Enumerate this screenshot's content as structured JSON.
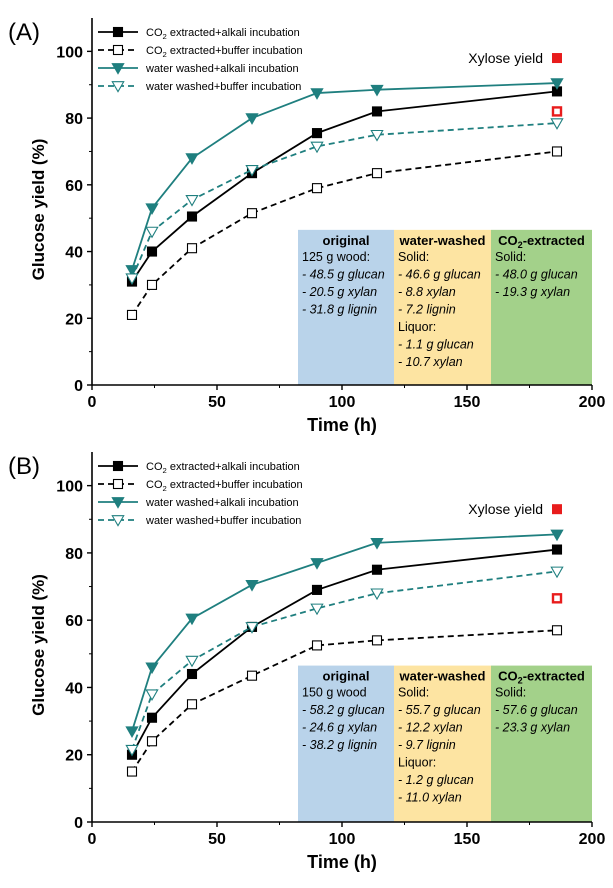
{
  "chart_data": [
    {
      "panel": "(A)",
      "type": "line",
      "xlabel": "Time (h)",
      "ylabel": "Glucose yield (%)",
      "xlim": [
        0,
        200
      ],
      "ylim": [
        0,
        110
      ],
      "xticks": [
        0,
        50,
        100,
        150,
        200
      ],
      "yticks": [
        0,
        20,
        40,
        60,
        80,
        100
      ],
      "grid": false,
      "legend_position": "top-left",
      "series": [
        {
          "name": "CO₂ extracted+alkali incubation",
          "marker": "square-filled",
          "line": "solid",
          "color": "#000000",
          "x": [
            16,
            24,
            40,
            64,
            90,
            114,
            186
          ],
          "y": [
            31,
            40,
            50.5,
            63.5,
            75.5,
            82,
            88
          ]
        },
        {
          "name": "CO₂ extracted+buffer incubation",
          "marker": "square-open",
          "line": "dashed",
          "color": "#000000",
          "x": [
            16,
            24,
            40,
            64,
            90,
            114,
            186
          ],
          "y": [
            21,
            30,
            41,
            51.5,
            59,
            63.5,
            70
          ]
        },
        {
          "name": "water washed+alkali incubation",
          "marker": "triangle-down-filled",
          "line": "solid",
          "color": "#1f7f7f",
          "x": [
            16,
            24,
            40,
            64,
            90,
            114,
            186
          ],
          "y": [
            34.5,
            53,
            68,
            80,
            87.5,
            88.5,
            90.5
          ]
        },
        {
          "name": "water washed+buffer incubation",
          "marker": "triangle-down-open",
          "line": "dashed",
          "color": "#1f7f7f",
          "x": [
            16,
            24,
            40,
            64,
            90,
            114,
            186
          ],
          "y": [
            32,
            46,
            55.5,
            64.5,
            71.5,
            75,
            78.5
          ]
        }
      ],
      "xylose_label": "Xylose yield",
      "xylose_points": [
        {
          "x": 186,
          "y": 98,
          "style": "filled",
          "color": "#e81c1c"
        },
        {
          "x": 186,
          "y": 82,
          "style": "open",
          "color": "#e81c1c"
        }
      ],
      "table": [
        {
          "title": "original",
          "color": "#b9d3ea",
          "lines": [
            "125 g wood:",
            "- 48.5 g glucan",
            "- 20.5 g xylan",
            "- 31.8 g lignin"
          ]
        },
        {
          "title": "water-washed",
          "color": "#fde4a2",
          "lines": [
            "Solid:",
            "- 46.6 g glucan",
            "- 8.8 xylan",
            "- 7.2 lignin",
            "Liquor:",
            "- 1.1 g glucan",
            "- 10.7 xylan"
          ]
        },
        {
          "title": "CO₂-extracted",
          "color": "#a3d18a",
          "lines": [
            "Solid:",
            "- 48.0 g glucan",
            "- 19.3 g xylan"
          ]
        }
      ]
    },
    {
      "panel": "(B)",
      "type": "line",
      "xlabel": "Time (h)",
      "ylabel": "Glucose yield (%)",
      "xlim": [
        0,
        200
      ],
      "ylim": [
        0,
        110
      ],
      "xticks": [
        0,
        50,
        100,
        150,
        200
      ],
      "yticks": [
        0,
        20,
        40,
        60,
        80,
        100
      ],
      "grid": false,
      "legend_position": "top-left",
      "series": [
        {
          "name": "CO₂ extracted+alkali incubation",
          "marker": "square-filled",
          "line": "solid",
          "color": "#000000",
          "x": [
            16,
            24,
            40,
            64,
            90,
            114,
            186
          ],
          "y": [
            20,
            31,
            44,
            58,
            69,
            75,
            81
          ]
        },
        {
          "name": "CO₂ extracted+buffer incubation",
          "marker": "square-open",
          "line": "dashed",
          "color": "#000000",
          "x": [
            16,
            24,
            40,
            64,
            90,
            114,
            186
          ],
          "y": [
            15,
            24,
            35,
            43.5,
            52.5,
            54,
            57
          ]
        },
        {
          "name": "water washed+alkali incubation",
          "marker": "triangle-down-filled",
          "line": "solid",
          "color": "#1f7f7f",
          "x": [
            16,
            24,
            40,
            64,
            90,
            114,
            186
          ],
          "y": [
            27,
            46,
            60.5,
            70.5,
            77,
            83,
            85.5
          ]
        },
        {
          "name": "water washed+buffer incubation",
          "marker": "triangle-down-open",
          "line": "dashed",
          "color": "#1f7f7f",
          "x": [
            16,
            24,
            40,
            64,
            90,
            114,
            186
          ],
          "y": [
            21.5,
            38,
            48,
            58,
            63.5,
            68,
            74.5
          ]
        }
      ],
      "xylose_label": "Xylose yield",
      "xylose_points": [
        {
          "x": 186,
          "y": 93,
          "style": "filled",
          "color": "#e81c1c"
        },
        {
          "x": 186,
          "y": 66.5,
          "style": "open",
          "color": "#e81c1c"
        }
      ],
      "table": [
        {
          "title": "original",
          "color": "#b9d3ea",
          "lines": [
            "150 g wood",
            "- 58.2 g glucan",
            "- 24.6 g xylan",
            "- 38.2 g lignin"
          ]
        },
        {
          "title": "water-washed",
          "color": "#fde4a2",
          "lines": [
            "Solid:",
            "- 55.7 g glucan",
            "- 12.2 xylan",
            "- 9.7 lignin",
            "Liquor:",
            "- 1.2 g glucan",
            "- 11.0 xylan"
          ]
        },
        {
          "title": "CO₂-extracted",
          "color": "#a3d18a",
          "lines": [
            "Solid:",
            "- 57.6 g glucan",
            "- 23.3 g xylan"
          ]
        }
      ]
    }
  ]
}
